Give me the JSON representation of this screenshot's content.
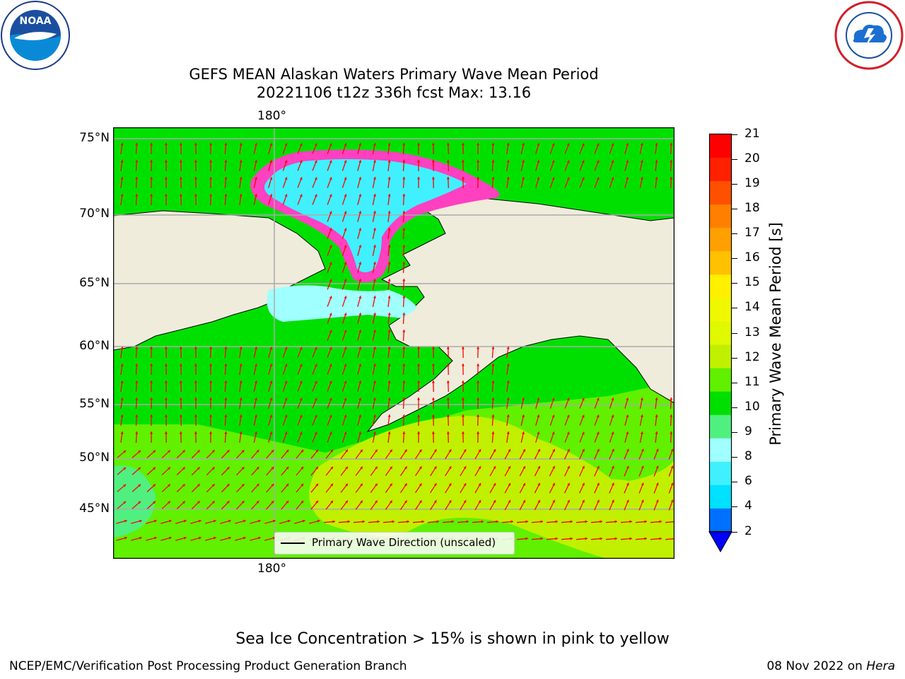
{
  "header": {
    "title_line1": "GEFS MEAN Alaskan Waters Primary Wave Mean Period",
    "title_line2": "20221106 t12z 336h fcst   Max: 13.16"
  },
  "logos": {
    "left": {
      "icon": "noaa-logo-icon",
      "text": "NOAA",
      "ring_text": "NATIONAL OCEANIC AND ATMOSPHERIC ADMINISTRATION · U.S. DEPARTMENT OF COMMERCE"
    },
    "right": {
      "icon": "nws-logo-icon",
      "ring_text": "NATIONAL WEATHER SERVICE"
    }
  },
  "map": {
    "latitude_labels": [
      "75°N",
      "70°N",
      "65°N",
      "60°N",
      "55°N",
      "50°N",
      "45°N"
    ],
    "longitude_label_top": "180°",
    "longitude_label_bottom": "180°",
    "legend_label": "Primary Wave Direction (unscaled)",
    "land_color": "#efecdc",
    "arrow_color": "#ff0000"
  },
  "colorbar": {
    "label": "Primary Wave Mean Period [s]",
    "ticks": [
      "21",
      "20",
      "19",
      "18",
      "17",
      "16",
      "15",
      "14",
      "13",
      "12",
      "11",
      "10",
      "9",
      "8",
      "6",
      "4",
      "2"
    ],
    "colors_bottom_to_top": [
      "#0070ff",
      "#00e0ff",
      "#40f0ff",
      "#a0ffff",
      "#50f080",
      "#00e000",
      "#60f000",
      "#c0f000",
      "#e0f800",
      "#f0f800",
      "#fff000",
      "#ffc000",
      "#ffa000",
      "#ff8000",
      "#ff5000",
      "#ff2000",
      "#ff0000"
    ],
    "extend_min_color": "#0000ff"
  },
  "footer": {
    "note": "Sea Ice Concentration > 15% is shown in pink to yellow",
    "credit": "NCEP/EMC/Verification Post Processing Product Generation Branch",
    "date": "08 Nov 2022 on",
    "host": "Hera"
  }
}
